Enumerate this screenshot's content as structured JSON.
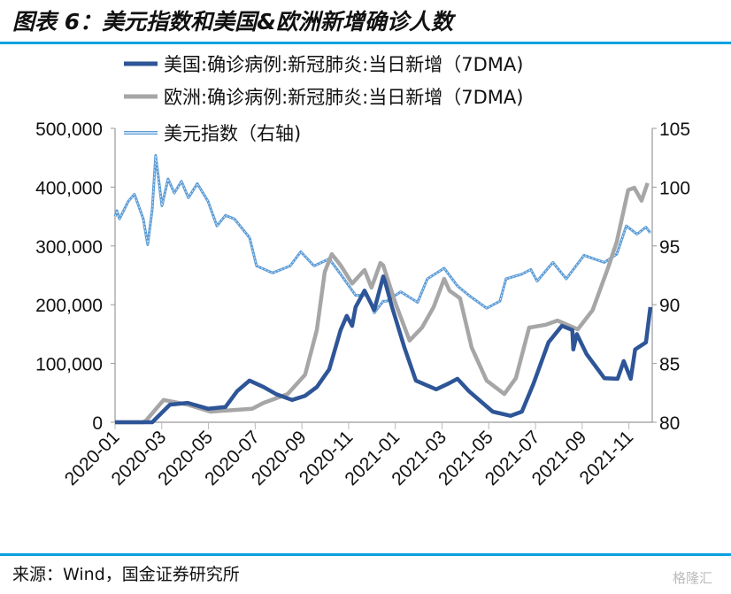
{
  "header": {
    "title": "图表 6：美元指数和美国&欧洲新增确诊人数"
  },
  "footer": {
    "source": "来源：Wind，国金证券研究所",
    "watermark": "格隆汇"
  },
  "colors": {
    "us": "#2e5597",
    "eu": "#a6a6a6",
    "dxy": "#5b9bd5",
    "rule": "#0aa0e0"
  },
  "chart_data": {
    "type": "line",
    "title": "美元指数和美国&欧洲新增确诊人数",
    "x_unit": "months since 2020-01",
    "xlim": [
      0,
      23
    ],
    "x_tick_values": [
      0,
      2,
      4,
      6,
      8,
      10,
      12,
      14,
      16,
      18,
      20,
      22
    ],
    "x_tick_labels": [
      "2020-01",
      "2020-03",
      "2020-05",
      "2020-07",
      "2020-09",
      "2020-11",
      "2021-01",
      "2021-03",
      "2021-05",
      "2021-07",
      "2021-09",
      "2021-11"
    ],
    "y_left": {
      "lim": [
        0,
        500000
      ],
      "ticks": [
        0,
        100000,
        200000,
        300000,
        400000,
        500000
      ],
      "tick_labels": [
        "0",
        "100,000",
        "200,000",
        "300,000",
        "400,000",
        "500,000"
      ]
    },
    "y_right": {
      "lim": [
        80,
        105
      ],
      "ticks": [
        80,
        85,
        90,
        95,
        100,
        105
      ],
      "tick_labels": [
        "80",
        "85",
        "90",
        "95",
        "100",
        "105"
      ]
    },
    "legend_position": "top-left",
    "series": [
      {
        "name": "美国:确诊病例:新冠肺炎:当日新增（7DMA)",
        "axis": "left",
        "x": [
          0,
          1.4,
          1.59,
          2.35,
          3.11,
          3.98,
          4.73,
          5.23,
          5.76,
          6.36,
          6.89,
          7.58,
          8.14,
          8.64,
          9.17,
          9.66,
          9.92,
          10.15,
          10.3,
          10.68,
          11.1,
          11.48,
          11.55,
          11.86,
          12.39,
          12.88,
          13.75,
          14.28,
          14.66,
          15.15,
          16.17,
          16.93,
          17.42,
          17.92,
          18.56,
          19.13,
          19.58,
          19.62,
          19.77,
          20.19,
          20.95,
          21.52,
          21.78,
          22.08,
          22.27,
          22.73,
          22.92
        ],
        "y": [
          0,
          0,
          0,
          30000,
          33000,
          23000,
          26000,
          53000,
          71000,
          60000,
          48000,
          38000,
          45000,
          60000,
          90000,
          157000,
          181000,
          164000,
          196000,
          224000,
          191000,
          248000,
          241000,
          196000,
          127000,
          71000,
          56000,
          66000,
          74000,
          53000,
          18000,
          11000,
          18000,
          66000,
          136000,
          164000,
          157000,
          124000,
          150000,
          116000,
          75000,
          74000,
          104000,
          74000,
          124000,
          136000,
          196000
        ]
      },
      {
        "name": "欧洲:确诊病例:新冠肺炎:当日新增（7DMA)",
        "axis": "left",
        "x": [
          0,
          1.2,
          1.33,
          2.08,
          3.11,
          4.09,
          5.87,
          6.36,
          7.39,
          8.14,
          8.64,
          8.98,
          9.28,
          9.66,
          10.15,
          10.68,
          10.98,
          11.36,
          11.48,
          12.01,
          12.61,
          13.14,
          13.64,
          14.09,
          14.32,
          14.77,
          15.27,
          15.91,
          16.67,
          17.16,
          17.73,
          18.45,
          18.94,
          19.81,
          20.45,
          21.1,
          21.48,
          21.97,
          22.23,
          22.54,
          22.8
        ],
        "y": [
          0,
          0,
          3000,
          38000,
          30000,
          18000,
          23000,
          33000,
          48000,
          81000,
          157000,
          256000,
          286000,
          267000,
          236000,
          259000,
          229000,
          271000,
          267000,
          202000,
          139000,
          161000,
          196000,
          244000,
          224000,
          211000,
          127000,
          71000,
          48000,
          75000,
          161000,
          166000,
          173000,
          158000,
          191000,
          262000,
          307000,
          395000,
          399000,
          377000,
          407000
        ]
      },
      {
        "name": "美元指数（右轴)",
        "axis": "right",
        "x": [
          0,
          0.08,
          0.19,
          0.57,
          0.83,
          1.21,
          1.4,
          1.59,
          1.74,
          2.01,
          2.27,
          2.54,
          2.84,
          3.14,
          3.52,
          3.98,
          4.36,
          4.73,
          5.11,
          5.76,
          6.06,
          6.74,
          7.5,
          7.95,
          8.52,
          9.17,
          9.66,
          10.3,
          10.8,
          11.1,
          11.48,
          11.63,
          12.23,
          12.95,
          13.37,
          14.09,
          14.66,
          15.15,
          15.91,
          16.48,
          16.74,
          17.42,
          17.8,
          18.07,
          18.75,
          19.32,
          20.08,
          20.95,
          21.48,
          21.89,
          22.35,
          22.73,
          22.92
        ],
        "y": [
          97.5,
          98.0,
          97.3,
          98.8,
          99.4,
          97.3,
          95.1,
          98.1,
          102.7,
          98.4,
          100.7,
          99.5,
          100.5,
          99.1,
          100.3,
          98.8,
          96.7,
          97.6,
          97.3,
          95.7,
          93.3,
          92.7,
          93.3,
          94.5,
          93.3,
          93.9,
          92.6,
          90.8,
          90.8,
          89.3,
          90.3,
          90.3,
          91.1,
          90.2,
          92.2,
          93.1,
          91.6,
          90.8,
          89.7,
          90.3,
          92.2,
          92.6,
          93.0,
          92.0,
          93.6,
          92.2,
          94.2,
          93.6,
          94.3,
          96.7,
          96.0,
          96.6,
          96.1
        ]
      }
    ]
  }
}
